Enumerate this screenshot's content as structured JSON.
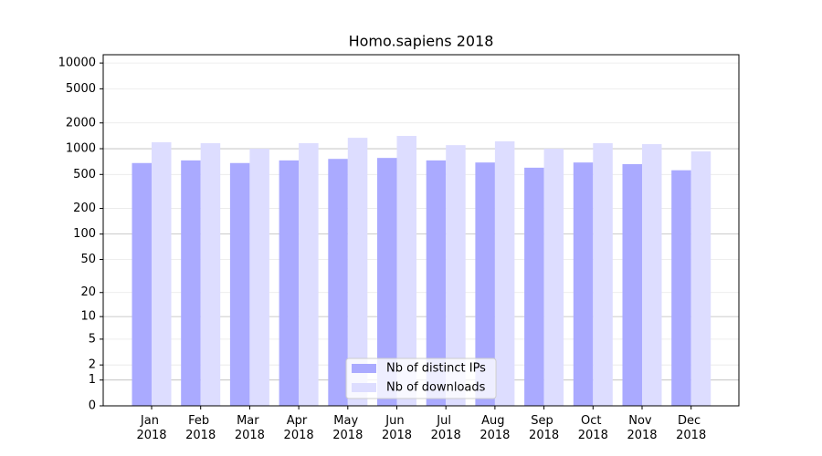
{
  "chart_data": {
    "type": "bar",
    "title": "Homo.sapiens 2018",
    "categories": [
      "Jan 2018",
      "Feb 2018",
      "Mar 2018",
      "Apr 2018",
      "May 2018",
      "Jun 2018",
      "Jul 2018",
      "Aug 2018",
      "Sep 2018",
      "Oct 2018",
      "Nov 2018",
      "Dec 2018"
    ],
    "series": [
      {
        "name": "Nb of distinct IPs",
        "color": "#aaaaff",
        "values": [
          680,
          730,
          680,
          730,
          760,
          780,
          730,
          690,
          600,
          690,
          660,
          560
        ]
      },
      {
        "name": "Nb of downloads",
        "color": "#ddddff",
        "values": [
          1190,
          1160,
          1000,
          1160,
          1340,
          1410,
          1100,
          1220,
          1000,
          1160,
          1130,
          930
        ]
      }
    ],
    "yscale": "log1p",
    "ylim": [
      0,
      12500
    ],
    "yticks": [
      0,
      1,
      2,
      5,
      10,
      20,
      50,
      100,
      200,
      500,
      1000,
      2000,
      5000,
      10000
    ],
    "grid": true,
    "legend": "lower center"
  }
}
